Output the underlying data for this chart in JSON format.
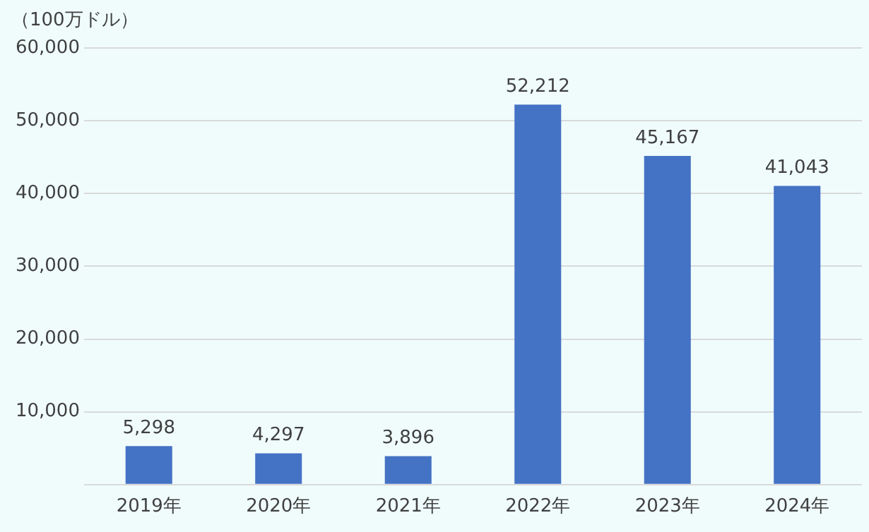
{
  "chart_data": {
    "type": "bar",
    "ylabel": "（100万ドル）",
    "categories": [
      "2019年",
      "2020年",
      "2021年",
      "2022年",
      "2023年",
      "2024年"
    ],
    "values": [
      5298,
      4297,
      3896,
      52212,
      45167,
      41043
    ],
    "color": "#4472c4",
    "ylim": [
      0,
      60000
    ],
    "yticks": [
      {
        "value": 0,
        "label": null
      },
      {
        "value": 10000,
        "label": "10,000"
      },
      {
        "value": 20000,
        "label": "20,000"
      },
      {
        "value": 30000,
        "label": "30,000"
      },
      {
        "value": 40000,
        "label": "40,000"
      },
      {
        "value": 50000,
        "label": "50,000"
      },
      {
        "value": 60000,
        "label": "60,000"
      }
    ],
    "value_labels": [
      "5,298",
      "4,297",
      "3,896",
      "52,212",
      "45,167",
      "41,043"
    ],
    "grid": "y",
    "legend": false
  }
}
